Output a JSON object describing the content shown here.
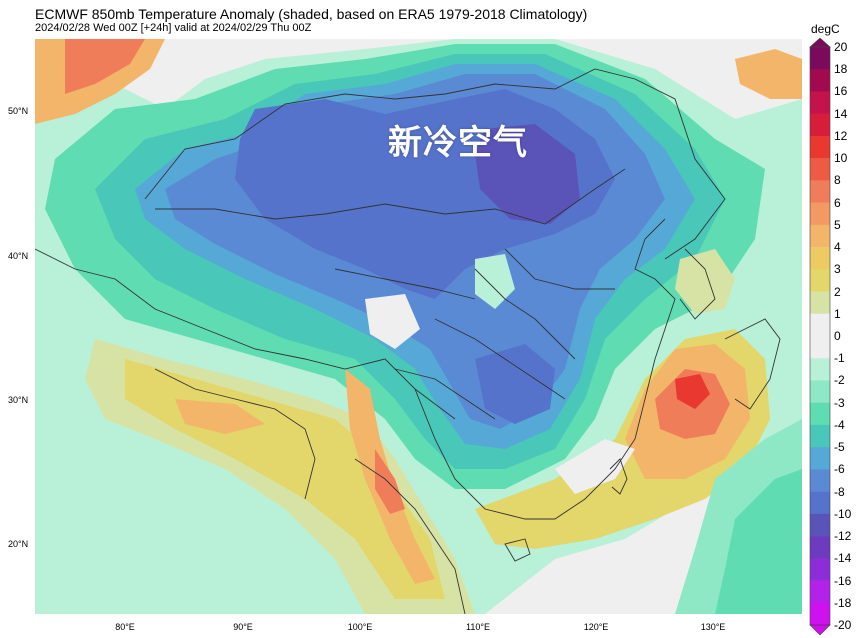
{
  "header": {
    "title": "ECMWF 850mb Temperature Anomaly (shaded, based on ERA5 1979-2018 Climatology)",
    "subtitle": "2024/02/28 Wed 00Z [+24h] valid at 2024/02/29 Thu 00Z"
  },
  "overlay": {
    "text": "新冷空气"
  },
  "axes": {
    "lat_labels": [
      "50°N",
      "40°N",
      "30°N",
      "20°N"
    ],
    "lon_labels": [
      "80°E",
      "90°E",
      "100°E",
      "110°E",
      "120°E",
      "130°E"
    ]
  },
  "colorbar": {
    "unit": "degC",
    "levels": [
      "20",
      "18",
      "16",
      "14",
      "12",
      "10",
      "8",
      "6",
      "5",
      "4",
      "3",
      "2",
      "1",
      "0",
      "-1",
      "-2",
      "-3",
      "-4",
      "-5",
      "-6",
      "-8",
      "-10",
      "-12",
      "-14",
      "-16",
      "-18",
      "-20"
    ],
    "colors": [
      "#7b0a5d",
      "#a10a4f",
      "#c4124a",
      "#d81d3a",
      "#e8382f",
      "#ee5b44",
      "#f07d5a",
      "#f39a62",
      "#f3b569",
      "#eccb62",
      "#e3d66a",
      "#d7e3a5",
      "#efefef",
      "#efefef",
      "#b9f0d8",
      "#8ee8c6",
      "#5fdcb1",
      "#49c7b9",
      "#56a9d6",
      "#5b8ad4",
      "#5673cc",
      "#5a54b9",
      "#6d3bbe",
      "#8d2dd8",
      "#b222e8",
      "#cf10ef"
    ]
  },
  "map_colors": {
    "background": "#efefef",
    "cold_main": "#5b8ad4",
    "cold_core": "#5673cc",
    "cold_deep": "#5a54b9",
    "mid_blue": "#56a9d6",
    "teal": "#49c7b9",
    "green": "#5fdcb1",
    "light_green": "#8ee8c6",
    "pale_green": "#b9f0d8",
    "yellow": "#e3d66a",
    "light_yellow": "#d7e3a5",
    "orange": "#f3b569",
    "salmon": "#f07d5a",
    "red": "#e8382f"
  }
}
